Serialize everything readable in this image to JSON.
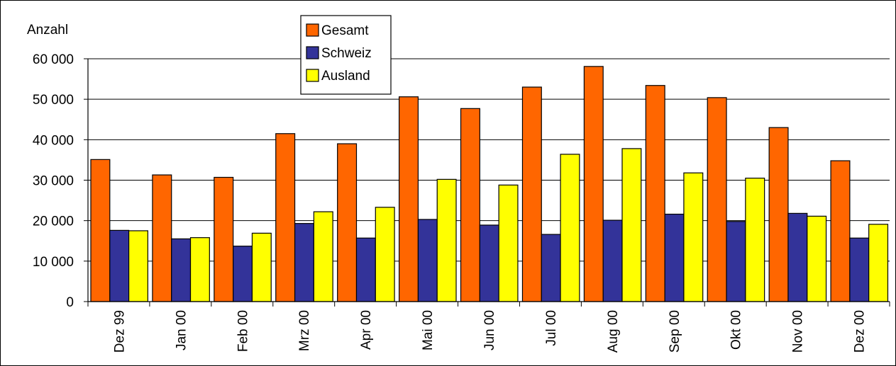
{
  "chart_data": {
    "type": "bar",
    "ylabel": "Anzahl",
    "xlabel": "",
    "ylim": [
      0,
      60000
    ],
    "yticks": [
      0,
      10000,
      20000,
      30000,
      40000,
      50000,
      60000
    ],
    "ytick_labels": [
      "0",
      "10 000",
      "20 000",
      "30 000",
      "40 000",
      "50 000",
      "60 000"
    ],
    "grid": true,
    "legend_position": "top-center",
    "categories": [
      "Dez 99",
      "Jan 00",
      "Feb 00",
      "Mrz 00",
      "Apr 00",
      "Mai 00",
      "Jun 00",
      "Jul 00",
      "Aug 00",
      "Sep 00",
      "Okt 00",
      "Nov 00",
      "Dez 00"
    ],
    "series": [
      {
        "name": "Gesamt",
        "color": "#FF6600",
        "values": [
          35100,
          31300,
          30700,
          41500,
          39000,
          50600,
          47700,
          53000,
          58100,
          53400,
          50400,
          43000,
          34800
        ]
      },
      {
        "name": "Schweiz",
        "color": "#333399",
        "values": [
          17600,
          15500,
          13700,
          19300,
          15700,
          20300,
          18900,
          16600,
          20100,
          21600,
          19800,
          21800,
          15700
        ]
      },
      {
        "name": "Ausland",
        "color": "#FFFF00",
        "values": [
          17500,
          15800,
          16900,
          22200,
          23300,
          30200,
          28800,
          36400,
          37800,
          31800,
          30500,
          21100,
          19100
        ]
      }
    ]
  }
}
